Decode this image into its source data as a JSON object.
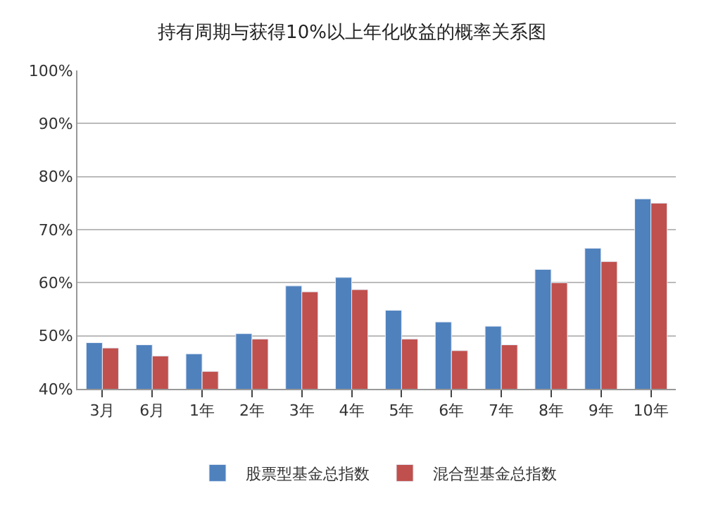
{
  "chart_data": {
    "type": "bar",
    "title": "持有周期与获得10%以上年化收益的概率关系图",
    "categories": [
      "3月",
      "6月",
      "1年",
      "2年",
      "3年",
      "4年",
      "5年",
      "6年",
      "7年",
      "8年",
      "9年",
      "10年"
    ],
    "series": [
      {
        "name": "股票型基金总指数",
        "color": "#4f81bd",
        "values": [
          48.7,
          48.3,
          46.6,
          50.4,
          59.4,
          61,
          54.8,
          52.6,
          51.8,
          62.5,
          66.5,
          75.8
        ]
      },
      {
        "name": "混合型基金总指数",
        "color": "#c0504d",
        "values": [
          47.7,
          46.2,
          43.3,
          49.4,
          58.3,
          58.7,
          49.4,
          47.2,
          48.3,
          60,
          64,
          75
        ]
      }
    ],
    "ylim": [
      40,
      100
    ],
    "yticks": [
      {
        "value": 40,
        "label": "40%"
      },
      {
        "value": 50,
        "label": "50%"
      },
      {
        "value": 60,
        "label": "60%"
      },
      {
        "value": 70,
        "label": "70%"
      },
      {
        "value": 80,
        "label": "80%"
      },
      {
        "value": 90,
        "label": "90%"
      },
      {
        "value": 100,
        "label": "100%"
      }
    ],
    "grid": "y",
    "legend": "bottom"
  }
}
